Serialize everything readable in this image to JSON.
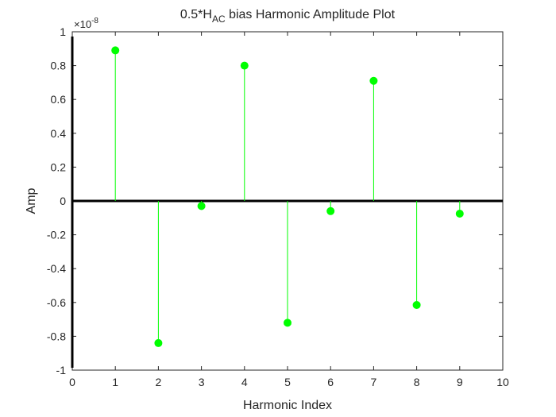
{
  "chart_data": {
    "type": "stem",
    "title": {
      "prefix": "0.5*H",
      "subscript": "AC",
      "suffix": " bias Harmonic Amplitude Plot"
    },
    "xlabel": "Harmonic Index",
    "ylabel": "Amp",
    "y_exponent": {
      "base": "×10",
      "power": "-8"
    },
    "xlim": [
      0,
      10
    ],
    "ylim": [
      -1,
      1
    ],
    "x_ticks": [
      0,
      1,
      2,
      3,
      4,
      5,
      6,
      7,
      8,
      9,
      10
    ],
    "y_ticks": [
      -1,
      -0.8,
      -0.6,
      -0.4,
      -0.2,
      0,
      0.2,
      0.4,
      0.6,
      0.8,
      1
    ],
    "y_tick_labels": [
      "-1",
      "-0.8",
      "-0.6",
      "-0.4",
      "-0.2",
      "0",
      "0.2",
      "0.4",
      "0.6",
      "0.8",
      "1"
    ],
    "x": [
      1,
      2,
      3,
      4,
      5,
      6,
      7,
      8,
      9
    ],
    "values": [
      0.89,
      -0.84,
      -0.03,
      0.8,
      -0.72,
      -0.06,
      0.71,
      -0.615,
      -0.075
    ],
    "value_scale": "1e-8",
    "colors": {
      "stem": "#00ff00",
      "marker": "#00ff00",
      "axis": "#262626",
      "baseline": "#000000"
    },
    "grid": false
  }
}
